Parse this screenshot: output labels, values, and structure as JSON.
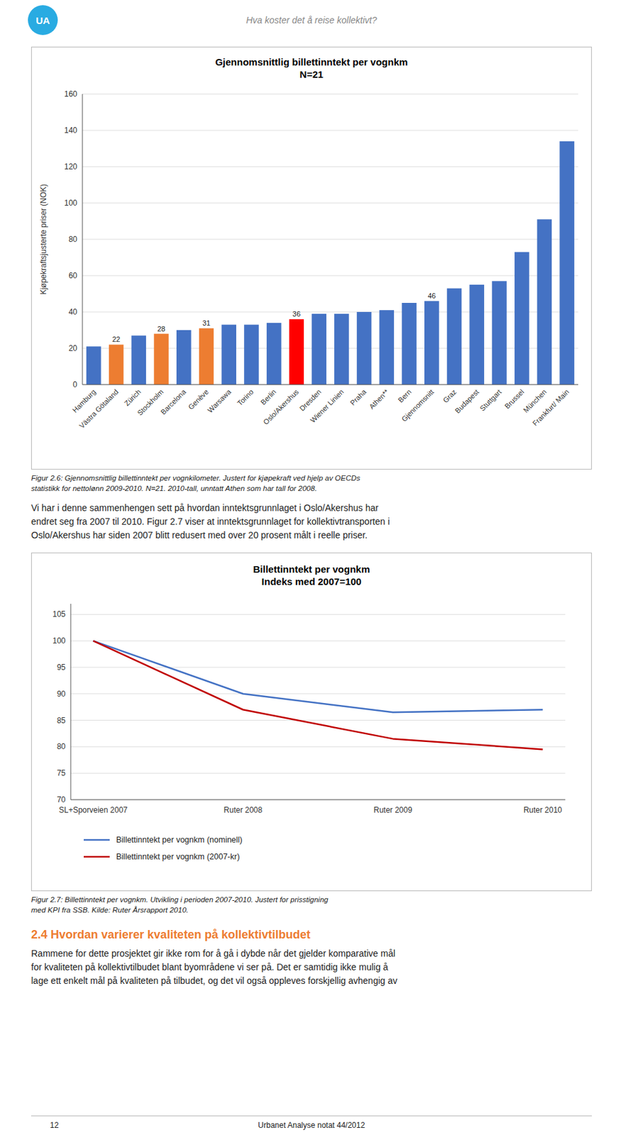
{
  "chart_data": [
    {
      "type": "bar",
      "title": "Gjennomsnittlig billettinntekt per vognkm\nN=21",
      "ylabel": "Kjøpekraftsjusterte priser (NOK)",
      "categories": [
        "Hamburg",
        "Västra Götaland",
        "Zürich",
        "Stockholm",
        "Barcelona",
        "Genève",
        "Warsawa",
        "Torino",
        "Berlin",
        "Oslo/Akershus",
        "Dresden",
        "Wiener Linien",
        "Praha",
        "Athen**",
        "Bern",
        "Gjennomsnitt",
        "Graz",
        "Budapest",
        "Stuttgart",
        "Brussel",
        "München",
        "Frankfurt/ Main"
      ],
      "values": [
        21,
        22,
        27,
        28,
        30,
        31,
        33,
        33,
        34,
        36,
        39,
        39,
        40,
        41,
        45,
        46,
        53,
        55,
        57,
        73,
        91,
        134
      ],
      "value_labels": [
        null,
        "22",
        null,
        "28",
        null,
        "31",
        null,
        null,
        null,
        "36",
        null,
        null,
        null,
        null,
        null,
        "46",
        null,
        null,
        null,
        null,
        null,
        null
      ],
      "colors": [
        "#4472C4",
        "#ED7D31",
        "#4472C4",
        "#ED7D31",
        "#4472C4",
        "#ED7D31",
        "#4472C4",
        "#4472C4",
        "#4472C4",
        "#FF0000",
        "#4472C4",
        "#4472C4",
        "#4472C4",
        "#4472C4",
        "#4472C4",
        "#4472C4",
        "#4472C4",
        "#4472C4",
        "#4472C4",
        "#4472C4",
        "#4472C4",
        "#4472C4"
      ],
      "ylim": [
        0,
        160
      ],
      "yticks": [
        0,
        20,
        40,
        60,
        80,
        100,
        120,
        140,
        160
      ],
      "grid": true
    },
    {
      "type": "line",
      "title": "Billettinntekt per vognkm\nIndeks med 2007=100",
      "categories": [
        "SL+Sporveien 2007",
        "Ruter 2008",
        "Ruter 2009",
        "Ruter 2010"
      ],
      "series": [
        {
          "name": "Billettinntekt per vognkm (nominell)",
          "color": "#4472C4",
          "values": [
            100,
            90,
            86.5,
            87
          ]
        },
        {
          "name": "Billettinntekt per vognkm (2007-kr)",
          "color": "#C00000",
          "values": [
            100,
            87,
            81.5,
            79.5
          ]
        }
      ],
      "ylim": [
        70,
        107
      ],
      "yticks": [
        70,
        75,
        80,
        85,
        90,
        95,
        100,
        105
      ],
      "grid": true,
      "legend": "bottom"
    }
  ],
  "page": {
    "logo_text": "UA",
    "logo_color": "#29ABE2",
    "header_text": "Hva koster det å reise kollektivt?",
    "figcaption1": "Figur 2.6: Gjennomsnittlig billettinntekt per vognkilometer. Justert for kjøpekraft ved hjelp av OECDs\nstatistikk for nettolønn 2009-2010. N=21. 2010-tall, unntatt Athen som har tall for 2008.",
    "paragraph": "Vi har i denne sammenhengen sett på hvordan inntektsgrunnlaget i Oslo/Akershus har\nendret seg fra 2007 til 2010. Figur 2.7 viser at inntektsgrunnlaget for kollektivtransporten i\nOslo/Akershus har siden 2007 blitt redusert med over 20 prosent målt i reelle priser.",
    "figcaption2": "Figur 2.7: Billettinntekt per vognkm. Utvikling i perioden 2007-2010. Justert for prisstigning\nmed KPI fra SSB. Kilde: Ruter Årsrapport 2010.",
    "section_heading": "2.4  Hvordan varierer kvaliteten på kollektivtilbudet",
    "heading_color": "#ED7D31",
    "section_text": "Rammene for dette prosjektet gir ikke rom for å gå i dybde når det gjelder komparative mål\nfor kvaliteten på kollektivtilbudet blant byområdene vi ser på. Det er samtidig ikke mulig å\nlage ett enkelt mål på kvaliteten på tilbudet, og det vil også oppleves forskjellig avhengig av",
    "page_number": "12",
    "publisher": "Urbanet Analyse notat 44/2012"
  }
}
